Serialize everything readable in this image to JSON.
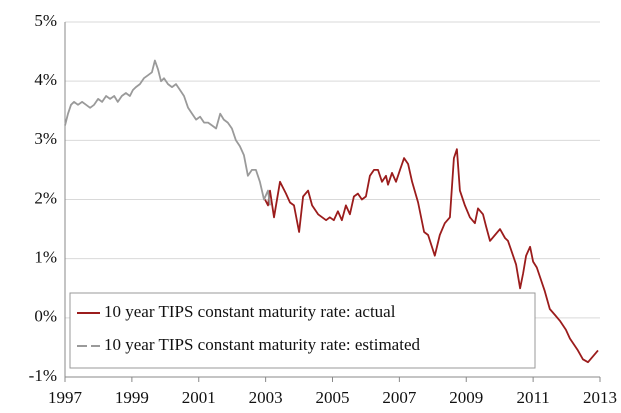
{
  "chart_data": {
    "type": "line",
    "xlim": [
      1997,
      2013
    ],
    "xticks": [
      1997,
      1999,
      2001,
      2003,
      2005,
      2007,
      2009,
      2011,
      2013
    ],
    "ylim": [
      -1,
      5
    ],
    "yticks": [
      {
        "value": -1,
        "label": "-1%"
      },
      {
        "value": 0,
        "label": "0%"
      },
      {
        "value": 1,
        "label": "1%"
      },
      {
        "value": 2,
        "label": "2%"
      },
      {
        "value": 3,
        "label": "3%"
      },
      {
        "value": 4,
        "label": "4%"
      },
      {
        "value": 5,
        "label": "5%"
      }
    ],
    "grid": true,
    "legend": "lower left",
    "series": [
      {
        "name": "10 year TIPS constant maturity rate: actual",
        "color": "#9b1c1c",
        "dashed": false,
        "x": [
          2002.98,
          2003.07,
          2003.13,
          2003.25,
          2003.43,
          2003.61,
          2003.73,
          2003.85,
          2004.0,
          2004.12,
          2004.27,
          2004.39,
          2004.57,
          2004.81,
          2004.92,
          2005.04,
          2005.16,
          2005.28,
          2005.4,
          2005.52,
          2005.64,
          2005.76,
          2005.88,
          2006.0,
          2006.12,
          2006.24,
          2006.36,
          2006.48,
          2006.6,
          2006.66,
          2006.78,
          2006.9,
          2007.02,
          2007.14,
          2007.26,
          2007.38,
          2007.56,
          2007.74,
          2007.86,
          2008.06,
          2008.21,
          2008.36,
          2008.51,
          2008.63,
          2008.72,
          2008.81,
          2008.96,
          2009.11,
          2009.26,
          2009.35,
          2009.5,
          2009.59,
          2009.71,
          2009.86,
          2010.01,
          2010.16,
          2010.25,
          2010.37,
          2010.49,
          2010.61,
          2010.7,
          2010.79,
          2010.91,
          2011.0,
          2011.11,
          2011.2,
          2011.35,
          2011.5,
          2011.65,
          2011.8,
          2011.98,
          2012.1,
          2012.34,
          2012.49,
          2012.64,
          2012.79,
          2012.94
        ],
        "values": [
          2.0,
          1.9,
          2.15,
          1.7,
          2.3,
          2.1,
          1.95,
          1.9,
          1.45,
          2.05,
          2.15,
          1.9,
          1.75,
          1.65,
          1.7,
          1.65,
          1.8,
          1.65,
          1.9,
          1.75,
          2.05,
          2.1,
          2.0,
          2.05,
          2.4,
          2.5,
          2.5,
          2.3,
          2.4,
          2.25,
          2.45,
          2.3,
          2.5,
          2.7,
          2.6,
          2.3,
          1.95,
          1.45,
          1.4,
          1.05,
          1.4,
          1.6,
          1.7,
          2.7,
          2.85,
          2.15,
          1.9,
          1.7,
          1.6,
          1.85,
          1.75,
          1.55,
          1.3,
          1.4,
          1.5,
          1.35,
          1.3,
          1.1,
          0.9,
          0.5,
          0.75,
          1.05,
          1.2,
          0.95,
          0.85,
          0.7,
          0.45,
          0.15,
          0.05,
          -0.05,
          -0.2,
          -0.35,
          -0.55,
          -0.7,
          -0.75,
          -0.65,
          -0.55
        ]
      },
      {
        "name": "10 year TIPS constant maturity rate: estimated",
        "color": "#9a9a9a",
        "dashed": true,
        "x": [
          1997.0,
          1997.09,
          1997.18,
          1997.27,
          1997.39,
          1997.51,
          1997.63,
          1997.75,
          1997.87,
          1997.99,
          1998.11,
          1998.23,
          1998.35,
          1998.47,
          1998.58,
          1998.7,
          1998.82,
          1998.94,
          1999.03,
          1999.12,
          1999.24,
          1999.36,
          1999.48,
          1999.6,
          1999.69,
          1999.78,
          1999.87,
          1999.96,
          2000.08,
          2000.2,
          2000.32,
          2000.44,
          2000.56,
          2000.68,
          2000.8,
          2000.92,
          2001.04,
          2001.16,
          2001.28,
          2001.4,
          2001.52,
          2001.64,
          2001.75,
          2001.87,
          2001.99,
          2002.11,
          2002.23,
          2002.35,
          2002.47,
          2002.59,
          2002.71,
          2002.83,
          2002.95,
          2003.07,
          2003.13
        ],
        "values": [
          3.25,
          3.45,
          3.6,
          3.65,
          3.6,
          3.65,
          3.6,
          3.55,
          3.6,
          3.7,
          3.65,
          3.75,
          3.7,
          3.75,
          3.65,
          3.75,
          3.8,
          3.75,
          3.85,
          3.9,
          3.95,
          4.05,
          4.1,
          4.15,
          4.35,
          4.2,
          4.0,
          4.05,
          3.95,
          3.9,
          3.95,
          3.85,
          3.75,
          3.55,
          3.45,
          3.35,
          3.4,
          3.3,
          3.3,
          3.25,
          3.2,
          3.45,
          3.35,
          3.3,
          3.2,
          3.0,
          2.9,
          2.75,
          2.4,
          2.5,
          2.5,
          2.3,
          2.0,
          2.15,
          1.9
        ]
      }
    ]
  }
}
